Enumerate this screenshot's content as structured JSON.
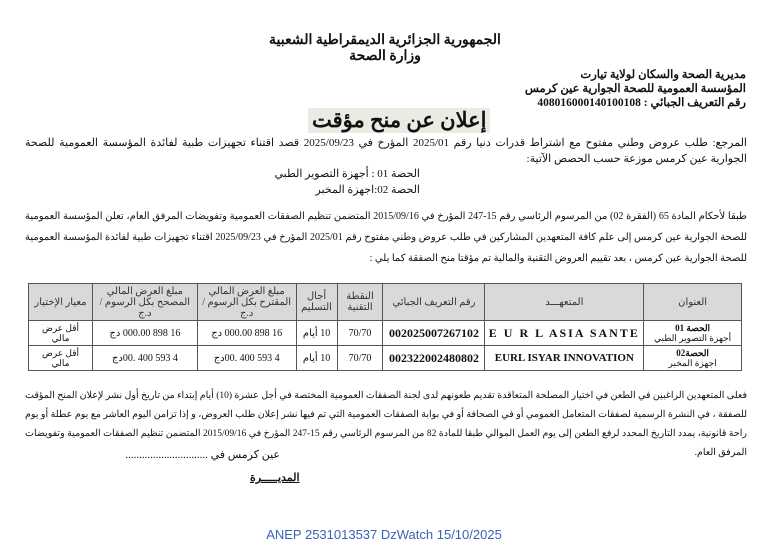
{
  "header": {
    "republic": "الجمهورية الجزائرية الديمقراطية الشعبية",
    "ministry": "وزارة الصحة"
  },
  "org": {
    "directorate": "مديرية الصحة والسكان لولاية تيارت",
    "institution": "المؤسسة العمومية للصحة الجوارية  عين كرمس",
    "nif": "رقم  التعريف  الجبائي :  408016000140100108"
  },
  "title": "إعلان عن منح مؤقت",
  "reference": "المرجع:  طلب عروض وطني مفتوح  مع اشتراط قدرات دنيا رقم 2025/01 المؤرخ في 2025/09/23 قصد اقتناء تجهيزات طبية لفائدة  المؤسسة العمومية للصحة الجوارية عين كرمس  موزعة حسب الحصص الآتية:",
  "lots": [
    "الحصة 01 : أجهزة التصوير الطبي",
    "الحصة 02:اجهزة المخبر"
  ],
  "intro": "طبقا لأحكام المادة 65 (الفقرة 02) من المرسوم الرئاسي رقم 15-247 المؤرخ في 2015/09/16 المتضمن تنظيم الصفقات العمومية وتفويضات المرفق العام، تعلن المؤسسة  العمومية للصحة الجوارية  عين كرمس  إلى علم كافة المتعهدين المشاركين في طلب عروض وطني مفتوح رقم 2025/01 المؤرخ في 2025/09/23  اقتناء تجهيزات طبية لفائدة  المؤسسة العمومية للصحة الجوارية عين كرمس ، بعد تقييم العروض التقنية والمالية تم مؤقتا منح الصفقة كما يلي :",
  "table": {
    "headers": [
      "العنوان",
      "المتعهـــد",
      "رقم التعريف الجبائي",
      "النقطة التقنية",
      "أجال التسليم",
      "مبلغ العرض المالي المقترح   بكل الرسوم / د.ج",
      "مبلغ العرض المالي المصحح بكل الرسوم / د.ج",
      "معيار الإختيار"
    ],
    "rows": [
      {
        "lot": "الحصة 01",
        "lot_name": "أجهزة التصوير الطبي",
        "bidder": "E U R L  ASIA  SANTE",
        "nif": "002025007267102",
        "score": "70/70",
        "delay": "10 أيام",
        "proposed": "16 898 000.00 دج",
        "corrected": "16 898 000.00 دج",
        "criterion": "أقل عرض مالي"
      },
      {
        "lot": "الحصة02",
        "lot_name": "اجهزة المخبر",
        "bidder": "EURL ISYAR INNOVATION",
        "nif": "002322002480802",
        "score": "70/70",
        "delay": "10 أيام",
        "proposed": "4 593 400 .00دج",
        "corrected": "4 593 400 .00دج",
        "criterion": "أقل عرض مالي"
      }
    ]
  },
  "appeal": "فعلى المتعهدين الراغبين في الطعن في اختيار المصلحة المتعاقدة تقديم  طعونهم  لدى  لجنة الصفقات العمومية المختصة في أجل عشرة (10)  أيام  إبتداء من تاريخ أول نشر لإعلان المنح المؤقت للصفقة ، في النشرة الرسمية لصفقات المتعامل العمومي أو في الصحافة أو في بوابة الصفقات العمومية التي تم فيها نشر  إعلان طلب العروض، و إذا تزامن اليوم العاشر مع يوم عطلة أو يوم راحة قانونية، يمدد التاريخ المحدد لرفع الطعن إلى يوم العمل الموالي طبقا للمادة 82 من المرسوم الرئاسي رقم 15-247 المؤرخ في 2015/09/16 المتضمن تنظيم الصفقات العمومية وتفويضات المرفق العام.",
  "place_date": "عين كرمس في ..............................",
  "signature": "المديـــــرة",
  "footer": "ANEP 2531013537 DzWatch 15/10/2025"
}
